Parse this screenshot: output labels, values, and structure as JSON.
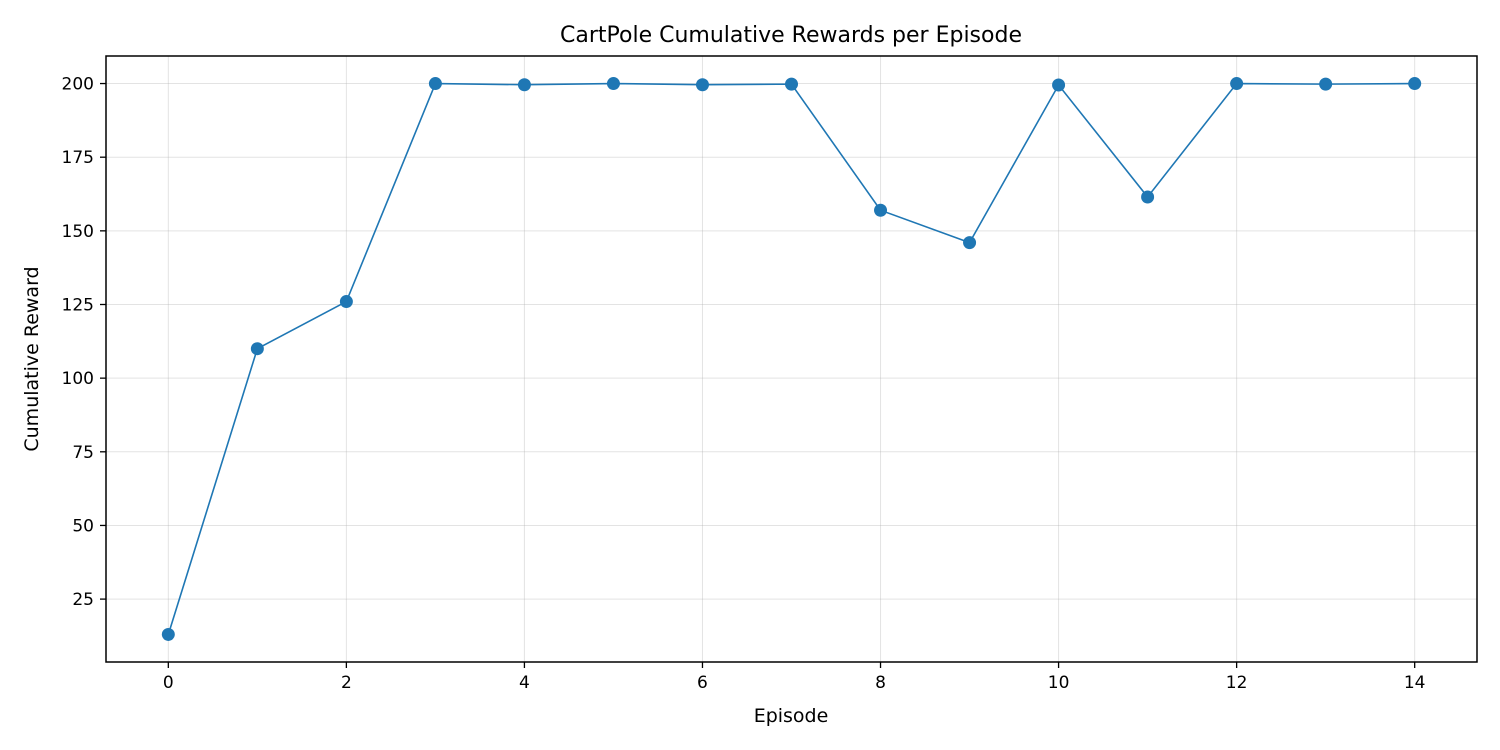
{
  "chart_data": {
    "type": "line",
    "title": "CartPole Cumulative Rewards per Episode",
    "xlabel": "Episode",
    "ylabel": "Cumulative Reward",
    "x": [
      0,
      1,
      2,
      3,
      4,
      5,
      6,
      7,
      8,
      9,
      10,
      11,
      12,
      13,
      14
    ],
    "series": [
      {
        "values": [
          13,
          110,
          126,
          200,
          199.6,
          200,
          199.6,
          199.8,
          157,
          146,
          199.5,
          161.5,
          200,
          199.8,
          200
        ]
      }
    ],
    "xlim": [
      -0.7,
      14.7
    ],
    "ylim": [
      3.65,
      209.35
    ],
    "xticks": [
      "0",
      "2",
      "4",
      "6",
      "8",
      "10",
      "12",
      "14"
    ],
    "yticks": [
      "25",
      "50",
      "75",
      "100",
      "125",
      "150",
      "175",
      "200"
    ],
    "grid": true,
    "legend": "none",
    "color": "#1f77b4",
    "marker": "circle"
  }
}
